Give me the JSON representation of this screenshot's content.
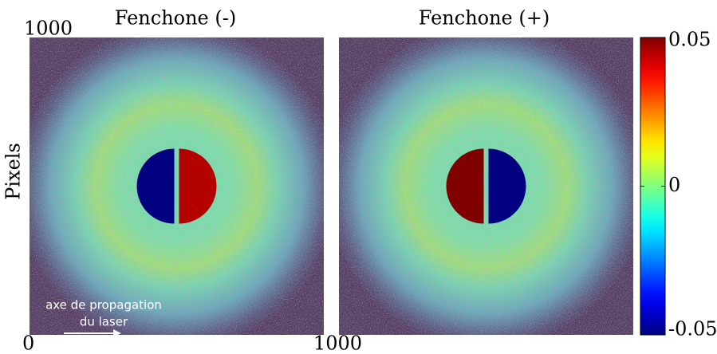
{
  "chart_data": [
    {
      "type": "image",
      "title": "Fenchone (-)",
      "ylabel": "Pixels",
      "xlim": [
        0,
        1000
      ],
      "ylim": [
        0,
        1000
      ],
      "xticks": [
        0,
        1000
      ],
      "yticks": [
        1000
      ],
      "annotation": [
        "axe de propagation",
        "du laser"
      ],
      "lobe_values": [
        -0.05,
        0.045
      ]
    },
    {
      "type": "image",
      "title": "Fenchone (+)",
      "lobe_values": [
        0.05,
        -0.05
      ],
      "colorbar": {
        "clim": [
          -0.05,
          0.05
        ],
        "ticks": [
          -0.05,
          0,
          0.05
        ],
        "colormap": "jet"
      }
    }
  ]
}
